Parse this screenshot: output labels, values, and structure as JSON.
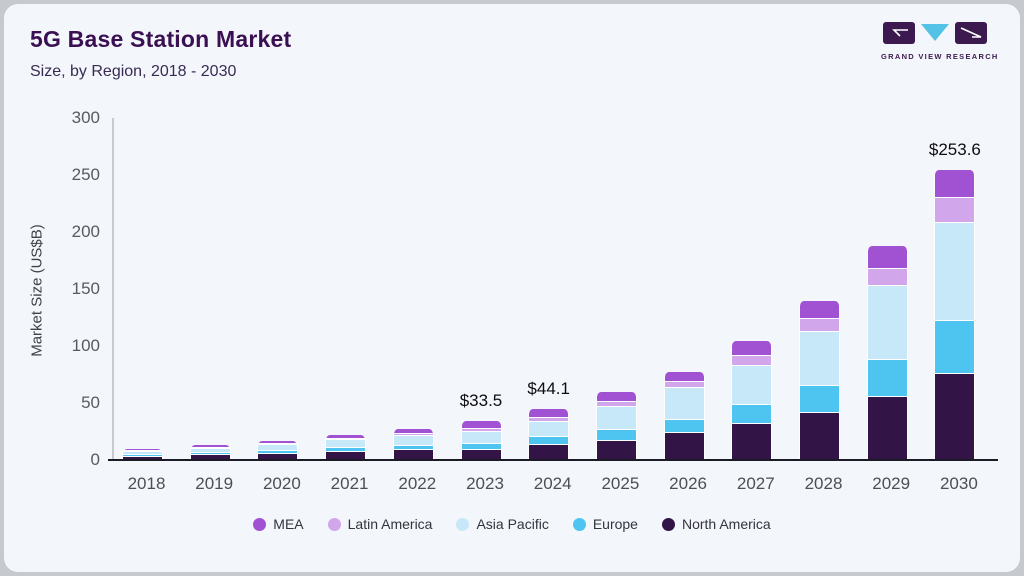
{
  "header": {
    "title": "5G Base Station Market",
    "subtitle": "Size, by Region, 2018 - 2030",
    "logo_text": "GRAND VIEW RESEARCH"
  },
  "colors": {
    "card_background": "#f3f6fa",
    "page_border": "#c6c9ce",
    "title": "#3a1053",
    "axis_line": "#1b1b25",
    "logo_dark": "#3c1a4f",
    "logo_blue": "#54c1e6"
  },
  "chart_data": {
    "type": "bar",
    "stacked": true,
    "title": "5G Base Station Market",
    "subtitle": "Size, by Region, 2018 - 2030",
    "xlabel": "",
    "ylabel": "Market Size (US$B)",
    "ylim": [
      0,
      300
    ],
    "yticks": [
      0,
      50,
      100,
      150,
      200,
      250,
      300
    ],
    "grid": false,
    "legend_position": "bottom",
    "categories": [
      "2018",
      "2019",
      "2020",
      "2021",
      "2022",
      "2023",
      "2024",
      "2025",
      "2026",
      "2027",
      "2028",
      "2029",
      "2030"
    ],
    "series": [
      {
        "name": "MEA",
        "color": "#a152d3",
        "values": [
          1.1,
          1.4,
          2.0,
          2.5,
          3.3,
          6.1,
          7.0,
          7.4,
          7.9,
          11.7,
          15.2,
          19.0,
          24.2
        ]
      },
      {
        "name": "Latin America",
        "color": "#d2a6ea",
        "values": [
          0.6,
          0.8,
          1.0,
          1.3,
          2.0,
          2.8,
          3.9,
          4.4,
          5.8,
          9.0,
          11.7,
          14.9,
          21.4
        ]
      },
      {
        "name": "Asia Pacific",
        "color": "#c7e8f8",
        "values": [
          2.6,
          3.6,
          4.8,
          7.3,
          8.6,
          10.2,
          13.0,
          20.4,
          27.8,
          34.2,
          46.8,
          64.9,
          86.2
        ]
      },
      {
        "name": "Europe",
        "color": "#4ec5f0",
        "values": [
          1.4,
          1.9,
          2.6,
          2.9,
          4.0,
          5.6,
          7.2,
          9.6,
          11.7,
          16.9,
          24.2,
          32.2,
          46.7
        ]
      },
      {
        "name": "North America",
        "color": "#321447",
        "values": [
          3.2,
          4.2,
          5.5,
          7.3,
          8.6,
          8.8,
          13.0,
          16.7,
          23.4,
          31.3,
          40.9,
          55.5,
          75.1
        ]
      }
    ],
    "totals": [
      8.9,
      11.9,
      15.9,
      21.3,
      26.5,
      33.5,
      44.1,
      58.5,
      76.6,
      103.1,
      138.8,
      186.5,
      253.6
    ],
    "annotations": [
      {
        "category": "2023",
        "text": "$33.5"
      },
      {
        "category": "2024",
        "text": "$44.1"
      },
      {
        "category": "2030",
        "text": "$253.6"
      }
    ]
  }
}
